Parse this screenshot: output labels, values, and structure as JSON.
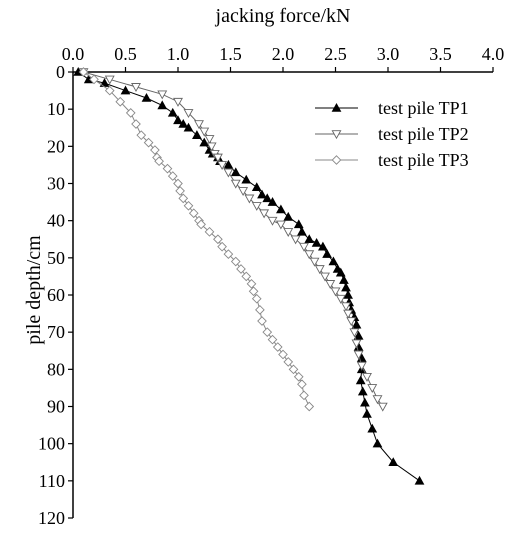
{
  "chart_data": {
    "type": "line",
    "xlabel": "jacking force/kN",
    "ylabel": "pile depth/cm",
    "xlim": [
      0,
      4
    ],
    "ylim": [
      0,
      120
    ],
    "y_inverted": true,
    "x_axis_position": "top",
    "x_ticks": [
      "0.0",
      "0.5",
      "1.0",
      "1.5",
      "2.0",
      "2.5",
      "3.0",
      "3.5",
      "4.0"
    ],
    "y_ticks": [
      "0",
      "10",
      "20",
      "30",
      "40",
      "50",
      "60",
      "70",
      "80",
      "90",
      "100",
      "110",
      "120"
    ],
    "grid": false,
    "legend_position": "top-right",
    "series": [
      {
        "name": "test pile  TP1",
        "marker": "filled-triangle-up",
        "color": "#000000",
        "x": [
          0.05,
          0.15,
          0.3,
          0.5,
          0.7,
          0.85,
          0.95,
          1.0,
          1.05,
          1.1,
          1.18,
          1.25,
          1.3,
          1.33,
          1.38,
          1.4,
          1.48,
          1.55,
          1.65,
          1.75,
          1.8,
          1.85,
          1.9,
          1.98,
          2.05,
          2.15,
          2.18,
          2.25,
          2.32,
          2.38,
          2.42,
          2.48,
          2.52,
          2.55,
          2.58,
          2.6,
          2.62,
          2.63,
          2.65,
          2.68,
          2.7,
          2.72,
          2.72,
          2.75,
          2.75,
          2.74,
          2.76,
          2.78,
          2.8,
          2.85,
          2.9,
          3.05,
          3.3
        ],
        "y": [
          0,
          2,
          3,
          5,
          7,
          9,
          11,
          13,
          14,
          15,
          17,
          19,
          21,
          22,
          23,
          24,
          25,
          27,
          29,
          31,
          33,
          34,
          35,
          37,
          39,
          41,
          43,
          45,
          46,
          47,
          49,
          51,
          53,
          54,
          56,
          58,
          60,
          62,
          64,
          66,
          68,
          71,
          74,
          77,
          80,
          83,
          86,
          89,
          92,
          96,
          100,
          105,
          110
        ]
      },
      {
        "name": "test pile  TP2",
        "marker": "open-triangle-down",
        "color": "#666666",
        "x": [
          0.1,
          0.35,
          0.6,
          0.85,
          1.0,
          1.1,
          1.2,
          1.25,
          1.3,
          1.32,
          1.35,
          1.38,
          1.42,
          1.48,
          1.55,
          1.62,
          1.68,
          1.75,
          1.82,
          1.9,
          1.98,
          2.05,
          2.12,
          2.2,
          2.25,
          2.3,
          2.35,
          2.4,
          2.45,
          2.5,
          2.55,
          2.6,
          2.62,
          2.65,
          2.68,
          2.7,
          2.72,
          2.75,
          2.8,
          2.85,
          2.9,
          2.95
        ],
        "y": [
          0,
          2,
          4,
          6,
          8,
          11,
          14,
          16,
          18,
          20,
          22,
          23,
          25,
          27,
          30,
          32,
          34,
          36,
          38,
          40,
          41,
          43,
          45,
          47,
          49,
          51,
          53,
          55,
          57,
          59,
          61,
          63,
          65,
          67,
          70,
          73,
          76,
          79,
          82,
          85,
          88,
          90
        ]
      },
      {
        "name": "test pile  TP3",
        "marker": "open-diamond",
        "color": "#888888",
        "x": [
          0.1,
          0.2,
          0.35,
          0.45,
          0.55,
          0.6,
          0.65,
          0.72,
          0.78,
          0.8,
          0.82,
          0.9,
          0.95,
          1.0,
          1.02,
          1.05,
          1.1,
          1.15,
          1.2,
          1.22,
          1.3,
          1.38,
          1.42,
          1.48,
          1.55,
          1.6,
          1.65,
          1.7,
          1.72,
          1.75,
          1.78,
          1.8,
          1.85,
          1.9,
          1.95,
          2.0,
          2.05,
          2.1,
          2.15,
          2.18,
          2.2,
          2.25
        ],
        "y": [
          0,
          2,
          5,
          8,
          11,
          14,
          17,
          19,
          21,
          23,
          24,
          26,
          28,
          30,
          32,
          34,
          36,
          38,
          40,
          41,
          43,
          45,
          47,
          49,
          51,
          53,
          55,
          57,
          59,
          61,
          64,
          67,
          70,
          72,
          74,
          76,
          78,
          80,
          82,
          84,
          87,
          90
        ]
      }
    ]
  }
}
